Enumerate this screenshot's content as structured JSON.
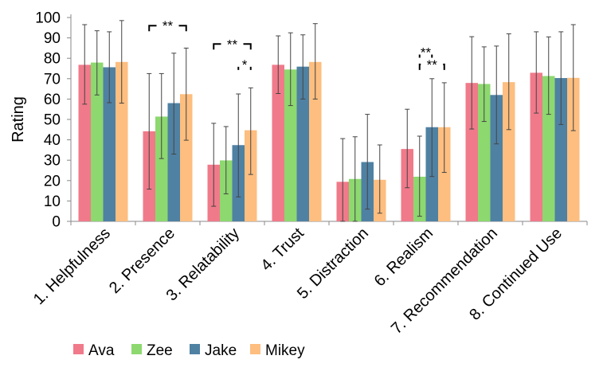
{
  "chart_data": {
    "type": "bar",
    "ylabel": "Rating",
    "xlabel": "",
    "ylim": [
      0,
      100
    ],
    "yticks": [
      0,
      10,
      20,
      30,
      40,
      50,
      60,
      70,
      80,
      90,
      100
    ],
    "grid": false,
    "legend_position": "bottom-left",
    "categories": [
      "1. Helpfulness",
      "2. Presence",
      "3. Relatability",
      "4. Trust",
      "5. Distraction",
      "6. Realism",
      "7. Recommendation",
      "8. Continued Use"
    ],
    "series": [
      {
        "name": "Ava",
        "color": "#F07A8A",
        "values": [
          76.8,
          44.2,
          27.8,
          76.8,
          19.4,
          35.5,
          67.9,
          72.9
        ],
        "error_low": [
          57.5,
          15.8,
          7.4,
          62.7,
          0,
          16.5,
          45.3,
          53.1
        ],
        "error_high": [
          96.5,
          72.5,
          48.1,
          91.0,
          40.6,
          55.0,
          90.6,
          93.0
        ]
      },
      {
        "name": "Zee",
        "color": "#8DD86F",
        "values": [
          77.9,
          51.4,
          29.9,
          74.5,
          20.8,
          21.9,
          67.4,
          71.3
        ],
        "error_low": [
          62.0,
          30.8,
          13.5,
          56.8,
          0,
          2.5,
          49.0,
          52.5
        ],
        "error_high": [
          93.5,
          72.5,
          46.5,
          92.5,
          41.5,
          41.8,
          85.6,
          90.5
        ]
      },
      {
        "name": "Jake",
        "color": "#4F81A3",
        "values": [
          75.6,
          58.0,
          37.4,
          75.9,
          29.1,
          46.2,
          62.0,
          70.3
        ],
        "error_low": [
          58.2,
          33.0,
          12.0,
          60.0,
          6.0,
          22.0,
          38.0,
          47.5
        ],
        "error_high": [
          93.0,
          82.5,
          62.5,
          91.5,
          52.5,
          70.0,
          86.0,
          93.0
        ]
      },
      {
        "name": "Mikey",
        "color": "#FDBE7F",
        "values": [
          78.2,
          62.4,
          44.7,
          78.2,
          20.4,
          46.2,
          68.3,
          70.4
        ],
        "error_low": [
          58.0,
          39.8,
          23.0,
          60.0,
          4.0,
          24.0,
          45.0,
          44.5
        ],
        "error_high": [
          98.5,
          85.0,
          65.5,
          97.0,
          37.5,
          68.0,
          92.0,
          96.5
        ]
      }
    ],
    "annotations": [
      {
        "category_index": 1,
        "from_series": 0,
        "to_series": 3,
        "label": "**",
        "level": 96
      },
      {
        "category_index": 2,
        "from_series": 0,
        "to_series": 3,
        "label": "**",
        "level": 87
      },
      {
        "category_index": 2,
        "from_series": 2,
        "to_series": 3,
        "label": "*",
        "level": 77
      },
      {
        "category_index": 5,
        "from_series": 1,
        "to_series": 2,
        "label": "**",
        "level": 83
      },
      {
        "category_index": 5,
        "from_series": 1,
        "to_series": 3,
        "label": "**",
        "level": 77
      }
    ]
  }
}
